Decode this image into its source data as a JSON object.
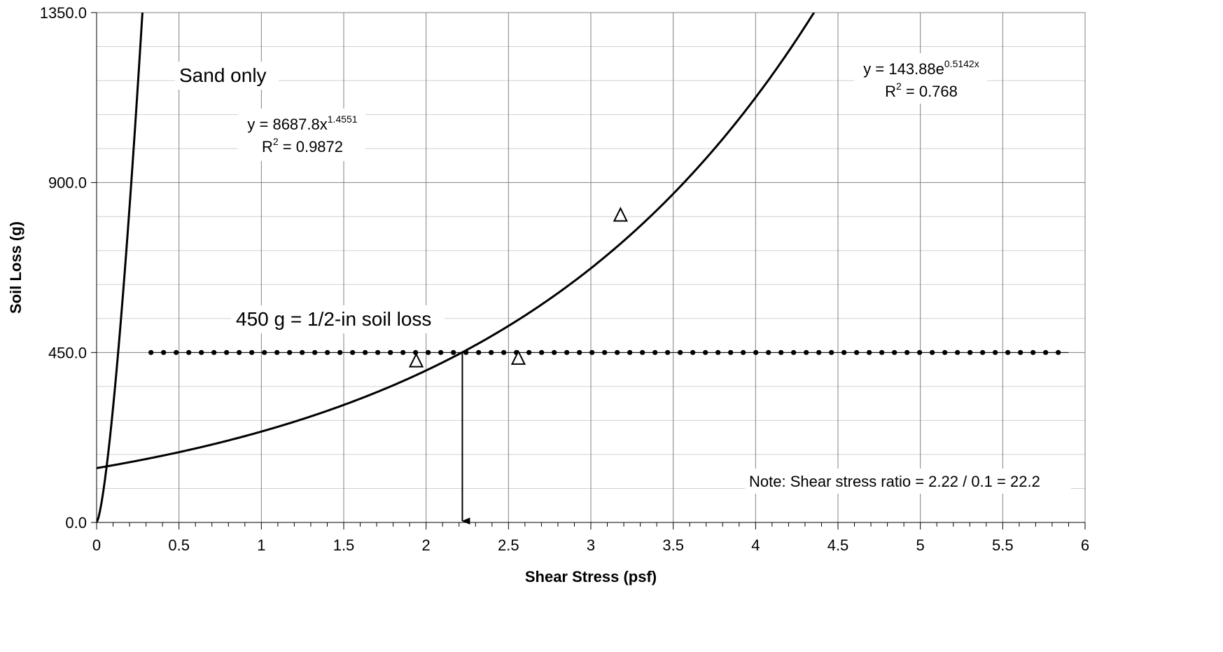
{
  "chart_data": {
    "type": "scatter",
    "xlabel": "Shear Stress (psf)",
    "ylabel": "Soil Loss (g)",
    "xlim": [
      0,
      6
    ],
    "ylim": [
      0,
      1350
    ],
    "x_ticks": [
      "0",
      "0.5",
      "1",
      "1.5",
      "2",
      "2.5",
      "3",
      "3.5",
      "4",
      "4.5",
      "5",
      "5.5",
      "6"
    ],
    "y_ticks": [
      "0.0",
      "450.0",
      "900.0",
      "1350.0"
    ],
    "grid": true,
    "series": [
      {
        "marker": "open-triangle",
        "points": [
          [
            1.94,
            429
          ],
          [
            2.56,
            436
          ],
          [
            3.18,
            815
          ]
        ]
      }
    ],
    "trendlines": [
      {
        "form": "power",
        "a": 8687.8,
        "b": 1.4551,
        "equation_base": "y = 8687.8x",
        "equation_exp": "1.4551",
        "r2_label": "R",
        "r2_sup": "2",
        "r2_value": " = 0.9872"
      },
      {
        "form": "exponential",
        "a": 143.88,
        "b": 0.5142,
        "equation_base": "y = 143.88e",
        "equation_exp": "0.5142x",
        "r2_label": "R",
        "r2_sup": "2",
        "r2_value": " = 0.768"
      }
    ],
    "threshold": {
      "y": 450,
      "x_start": 0.33,
      "x_end": 5.9,
      "label": "450 g = 1/2-in soil loss"
    },
    "arrow": {
      "x": 2.22,
      "y_from": 450,
      "y_to": 0
    },
    "annotations": {
      "sand_only": "Sand only",
      "note": "Note: Shear stress ratio = 2.22 / 0.1 = 22.2"
    }
  }
}
